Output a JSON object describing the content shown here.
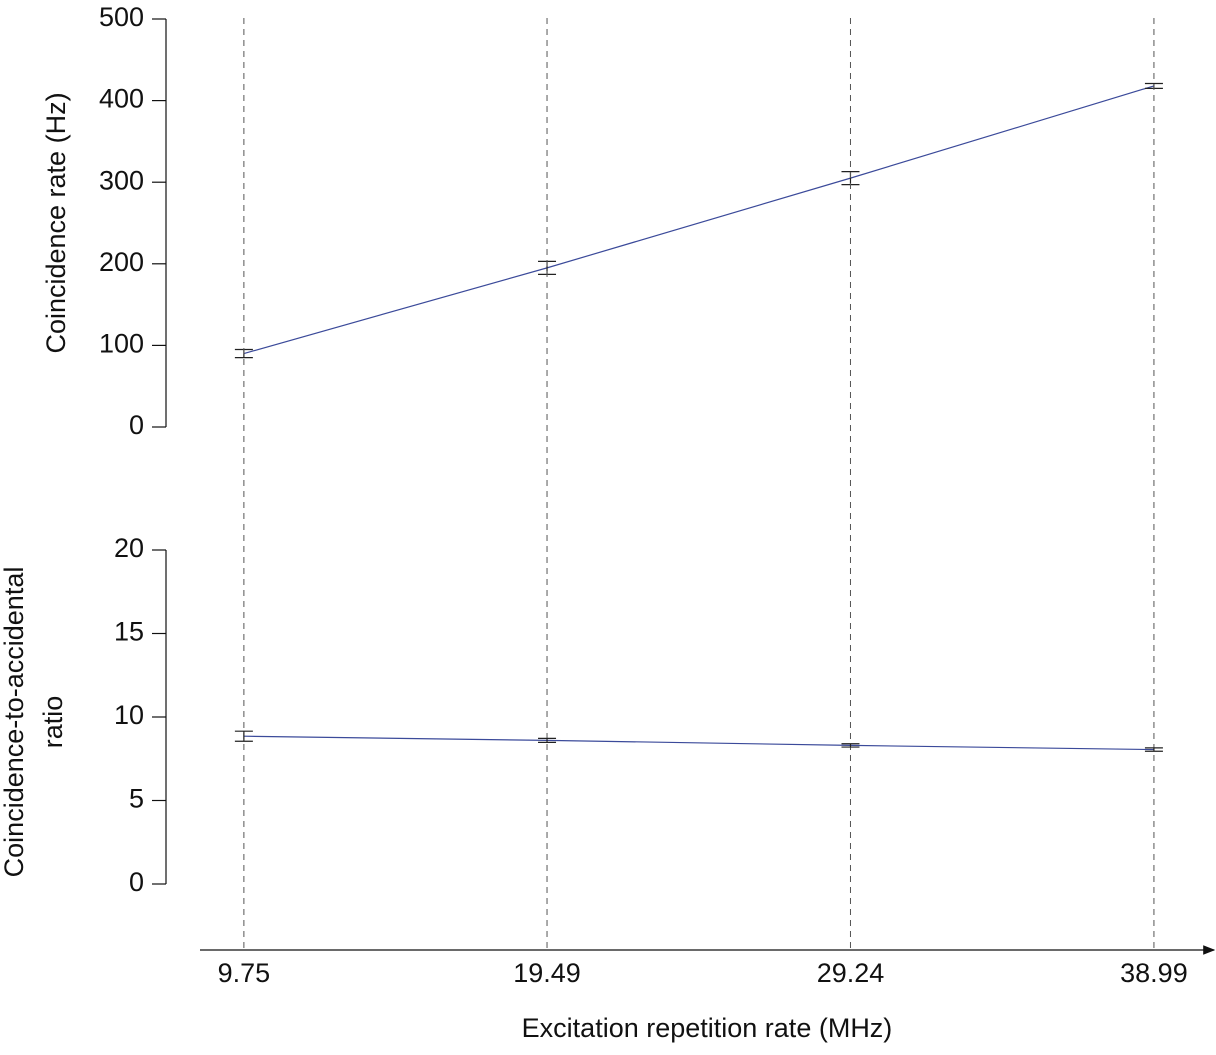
{
  "chart_data": [
    {
      "type": "line",
      "ylabel": "Coincidence rate (Hz)",
      "x": [
        9.75,
        19.49,
        29.24,
        38.99
      ],
      "xlim": [
        8.34,
        40.92
      ],
      "ylim": [
        0,
        500
      ],
      "yticks": [
        0,
        100,
        200,
        300,
        400,
        500
      ],
      "series": [
        {
          "color": "#3b4a9a",
          "values": [
            90,
            195,
            305,
            418
          ],
          "errors": [
            5,
            8,
            8,
            3
          ]
        }
      ]
    },
    {
      "type": "line",
      "ylabel": [
        "Coincidence-to-accidental",
        "ratio"
      ],
      "xlabel": "Excitation repetition rate (MHz)",
      "x": [
        9.75,
        19.49,
        29.24,
        38.99
      ],
      "xlim": [
        8.34,
        40.92
      ],
      "xticks": [
        9.75,
        19.49,
        29.24,
        38.99
      ],
      "ylim": [
        0,
        20
      ],
      "yticks": [
        0,
        5,
        10,
        15,
        20
      ],
      "series": [
        {
          "color": "#3b4a9a",
          "values": [
            8.85,
            8.6,
            8.3,
            8.05
          ],
          "errors": [
            0.3,
            0.12,
            0.1,
            0.1
          ]
        }
      ]
    }
  ]
}
